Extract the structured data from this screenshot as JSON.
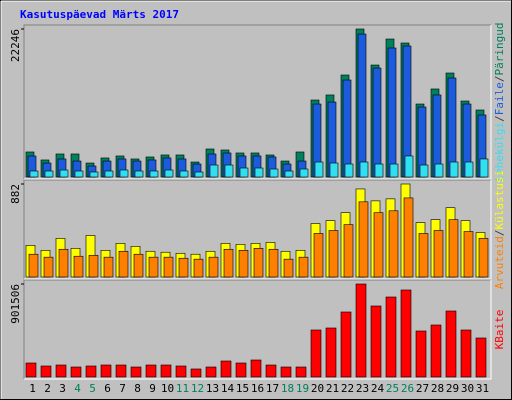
{
  "chart_data": [
    {
      "type": "bar",
      "title": "Kasutuspäevad Märts 2017",
      "legend_separator": "/",
      "ylim": [
        0,
        22246
      ],
      "yticks": [
        22246
      ],
      "series": [
        {
          "name": "Päringud",
          "color": "#00805c",
          "values": [
            3760,
            2560,
            3460,
            3460,
            2100,
            2860,
            3160,
            2710,
            3010,
            3310,
            3310,
            2250,
            4210,
            4060,
            3610,
            3610,
            3310,
            2400,
            3760,
            11570,
            12330,
            15330,
            22246,
            16830,
            20740,
            20140,
            10970,
            13230,
            15630,
            11420,
            10070
          ]
        },
        {
          "name": "Faile",
          "color": "#1c5cdc",
          "values": [
            3160,
            2100,
            2710,
            2400,
            1650,
            2400,
            2710,
            2400,
            2560,
            2860,
            2710,
            1950,
            3460,
            3610,
            3160,
            3160,
            3010,
            1950,
            2400,
            10970,
            11270,
            14580,
            21490,
            16380,
            19390,
            19690,
            10520,
            12330,
            14880,
            10970,
            9320
          ]
        },
        {
          "name": "Lehekülgi",
          "color": "#30e0f0",
          "values": [
            900,
            900,
            1050,
            900,
            750,
            900,
            1050,
            900,
            900,
            1050,
            900,
            750,
            1800,
            1800,
            1350,
            1350,
            1200,
            900,
            1200,
            2250,
            2100,
            1950,
            2250,
            1950,
            1950,
            3160,
            1800,
            1950,
            2250,
            2250,
            2710
          ]
        }
      ]
    },
    {
      "type": "bar",
      "legend_separator": "/",
      "ylim": [
        0,
        882
      ],
      "yticks": [
        882
      ],
      "series": [
        {
          "name": "Külastusi",
          "color": "#ffff00",
          "values": [
            300,
            253,
            366,
            272,
            394,
            253,
            319,
            291,
            244,
            235,
            225,
            216,
            244,
            319,
            310,
            319,
            328,
            244,
            253,
            507,
            535,
            610,
            835,
            722,
            741,
            882,
            516,
            544,
            657,
            535,
            422
          ]
        },
        {
          "name": "Arvuteid",
          "color": "#ff8000",
          "values": [
            216,
            188,
            263,
            197,
            206,
            188,
            244,
            216,
            188,
            188,
            178,
            169,
            188,
            263,
            253,
            272,
            263,
            169,
            188,
            413,
            441,
            497,
            713,
            610,
            628,
            750,
            413,
            441,
            544,
            431,
            366
          ]
        }
      ]
    },
    {
      "type": "bar",
      "ylim": [
        0,
        901506
      ],
      "yticks": [
        901506
      ],
      "categories": [
        "1",
        "2",
        "3",
        "4",
        "5",
        "6",
        "7",
        "8",
        "9",
        "10",
        "11",
        "12",
        "13",
        "14",
        "15",
        "16",
        "17",
        "18",
        "19",
        "20",
        "21",
        "22",
        "23",
        "24",
        "25",
        "26",
        "27",
        "28",
        "29",
        "30",
        "31"
      ],
      "category_colors": [
        "#000000",
        "#000000",
        "#000000",
        "#00805c",
        "#00805c",
        "#000000",
        "#000000",
        "#000000",
        "#000000",
        "#000000",
        "#00805c",
        "#00805c",
        "#000000",
        "#000000",
        "#000000",
        "#000000",
        "#000000",
        "#00805c",
        "#00805c",
        "#000000",
        "#000000",
        "#000000",
        "#000000",
        "#000000",
        "#00805c",
        "#00805c",
        "#000000",
        "#000000",
        "#000000",
        "#000000",
        "#000000"
      ],
      "series": [
        {
          "name": "KBaite",
          "color": "#ff0000",
          "values": [
            135700,
            106600,
            116300,
            96900,
            106600,
            116300,
            116300,
            96900,
            116300,
            116300,
            106600,
            77600,
            96900,
            155100,
            135700,
            164800,
            116300,
            96900,
            96900,
            455600,
            475000,
            630100,
            901506,
            688300,
            775500,
            843400,
            445900,
            504100,
            639800,
            455600,
            378100
          ]
        }
      ]
    }
  ]
}
